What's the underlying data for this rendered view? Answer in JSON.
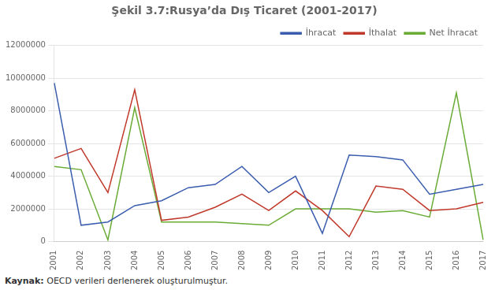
{
  "chart_data": {
    "type": "line",
    "title": "Şekil 3.7:Rusya’da Dış Ticaret (2001-2017)",
    "categories": [
      "2001",
      "2002",
      "2003",
      "2004",
      "2005",
      "2006",
      "2007",
      "2008",
      "2009",
      "2010",
      "2011",
      "2012",
      "2013",
      "2014",
      "2015",
      "2016",
      "2017"
    ],
    "series": [
      {
        "name": "İhracat",
        "color": "#3A5DAE",
        "values": [
          9700000,
          1000000,
          1200000,
          2200000,
          2500000,
          3300000,
          3500000,
          4600000,
          3000000,
          4000000,
          500000,
          5300000,
          5200000,
          5000000,
          2900000,
          3200000,
          3500000
        ]
      },
      {
        "name": "İthalat",
        "color": "#C0392B",
        "values": [
          5100000,
          5700000,
          3000000,
          9300000,
          1300000,
          1500000,
          2100000,
          2900000,
          1900000,
          3100000,
          1900000,
          300000,
          3400000,
          3200000,
          1900000,
          2000000,
          2400000
        ]
      },
      {
        "name": "Net İhracat",
        "color": "#6AAB35",
        "values": [
          4600000,
          4400000,
          100000,
          8200000,
          1200000,
          1200000,
          1200000,
          1100000,
          1000000,
          2000000,
          2000000,
          2000000,
          1800000,
          1900000,
          1500000,
          9100000,
          100000
        ]
      }
    ],
    "ylim": [
      0,
      12000000
    ],
    "yticks": [
      0,
      2000000,
      4000000,
      6000000,
      8000000,
      10000000,
      12000000
    ],
    "grid": true,
    "legend": "upper right",
    "annotations": [
      "Kaynak: OECD verileri derlenerek oluşturulmuştur."
    ]
  }
}
